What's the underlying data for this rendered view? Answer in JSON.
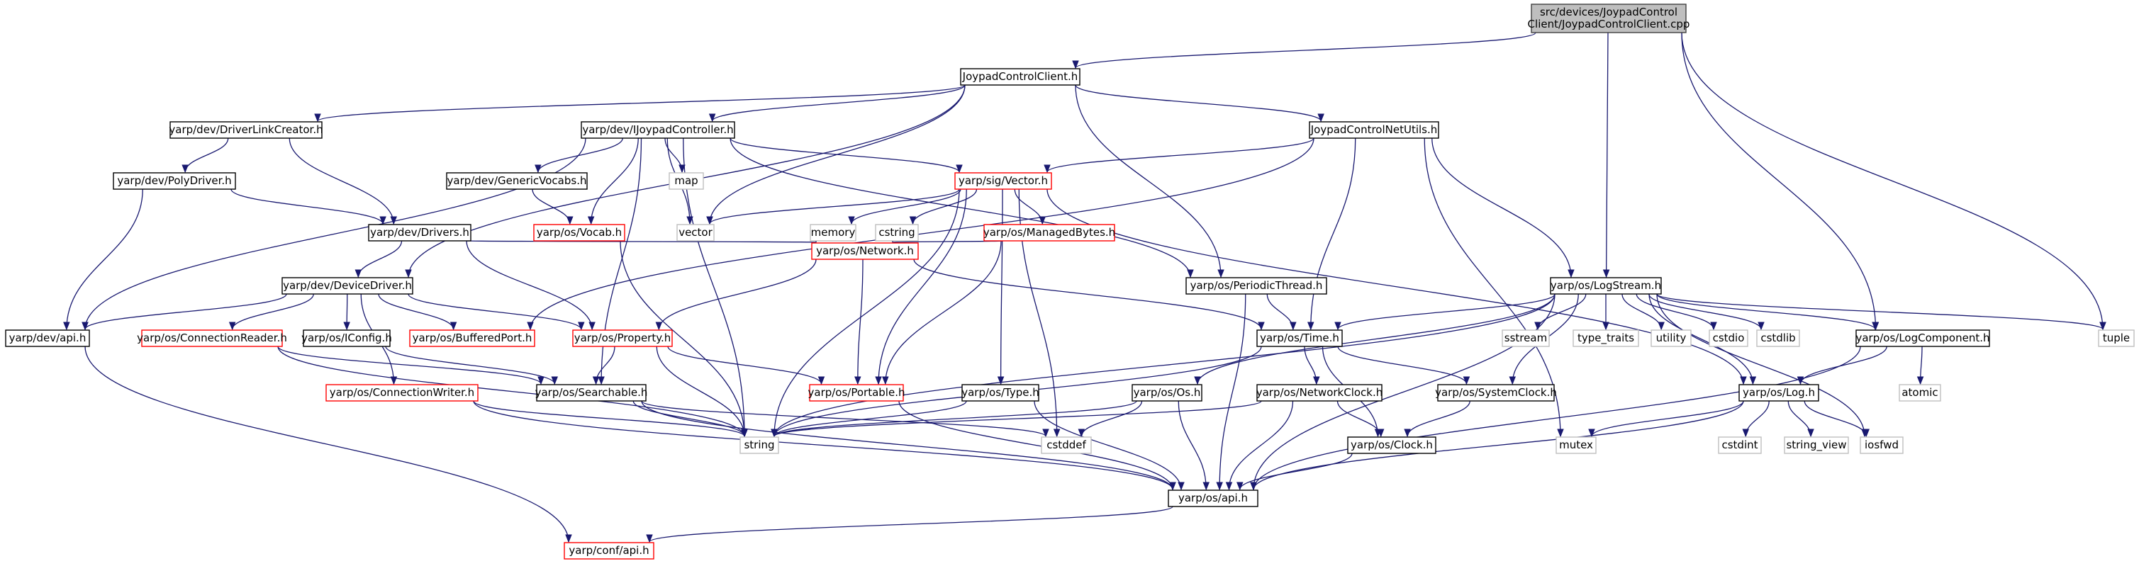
{
  "colors": {
    "background": "#ffffff",
    "edge": "#191970",
    "root_fill": "#bfbfbf",
    "node_fill": "#ffffff",
    "documented_border": "#000000",
    "undocumented_border": "#ff0000",
    "system_border": "#bfbfbf",
    "system_text": "#404040"
  },
  "nodes": [
    {
      "id": "root",
      "lines": [
        "src/devices/JoypadControl",
        "Client/JoypadControlClient.cpp"
      ],
      "kind": "root"
    },
    {
      "id": "joypadcontrolclient_h",
      "lines": [
        "JoypadControlClient.h"
      ],
      "kind": "documented"
    },
    {
      "id": "driverlinkcreator_h",
      "lines": [
        "yarp/dev/DriverLinkCreator.h"
      ],
      "kind": "documented"
    },
    {
      "id": "ijoypadcontroller_h",
      "lines": [
        "yarp/dev/IJoypadController.h"
      ],
      "kind": "documented"
    },
    {
      "id": "joypadcontrolnetutils_h",
      "lines": [
        "JoypadControlNetUtils.h"
      ],
      "kind": "documented"
    },
    {
      "id": "polydriver_h",
      "lines": [
        "yarp/dev/PolyDriver.h"
      ],
      "kind": "documented"
    },
    {
      "id": "genericvocabs_h",
      "lines": [
        "yarp/dev/GenericVocabs.h"
      ],
      "kind": "documented"
    },
    {
      "id": "map",
      "lines": [
        "map"
      ],
      "kind": "system"
    },
    {
      "id": "vector_h",
      "lines": [
        "yarp/sig/Vector.h"
      ],
      "kind": "undocumented"
    },
    {
      "id": "vocab_h",
      "lines": [
        "yarp/os/Vocab.h"
      ],
      "kind": "undocumented"
    },
    {
      "id": "vector",
      "lines": [
        "vector"
      ],
      "kind": "system"
    },
    {
      "id": "memory",
      "lines": [
        "memory"
      ],
      "kind": "system"
    },
    {
      "id": "cstring",
      "lines": [
        "cstring"
      ],
      "kind": "system"
    },
    {
      "id": "managedbytes_h",
      "lines": [
        "yarp/os/ManagedBytes.h"
      ],
      "kind": "undocumented"
    },
    {
      "id": "drivers_h",
      "lines": [
        "yarp/dev/Drivers.h"
      ],
      "kind": "documented"
    },
    {
      "id": "network_h",
      "lines": [
        "yarp/os/Network.h"
      ],
      "kind": "undocumented"
    },
    {
      "id": "periodicthread_h",
      "lines": [
        "yarp/os/PeriodicThread.h"
      ],
      "kind": "documented"
    },
    {
      "id": "logstream_h",
      "lines": [
        "yarp/os/LogStream.h"
      ],
      "kind": "documented"
    },
    {
      "id": "devicedriver_h",
      "lines": [
        "yarp/dev/DeviceDriver.h"
      ],
      "kind": "documented"
    },
    {
      "id": "dev_api_h",
      "lines": [
        "yarp/dev/api.h"
      ],
      "kind": "documented"
    },
    {
      "id": "connectionreader_h",
      "lines": [
        "yarp/os/ConnectionReader.h"
      ],
      "kind": "undocumented"
    },
    {
      "id": "iconfig_h",
      "lines": [
        "yarp/os/IConfig.h"
      ],
      "kind": "documented"
    },
    {
      "id": "bufferedport_h",
      "lines": [
        "yarp/os/BufferedPort.h"
      ],
      "kind": "undocumented"
    },
    {
      "id": "property_h",
      "lines": [
        "yarp/os/Property.h"
      ],
      "kind": "undocumented"
    },
    {
      "id": "time_h",
      "lines": [
        "yarp/os/Time.h"
      ],
      "kind": "documented"
    },
    {
      "id": "sstream",
      "lines": [
        "sstream"
      ],
      "kind": "system"
    },
    {
      "id": "type_traits",
      "lines": [
        "type_traits"
      ],
      "kind": "system"
    },
    {
      "id": "utility",
      "lines": [
        "utility"
      ],
      "kind": "system"
    },
    {
      "id": "cstdio",
      "lines": [
        "cstdio"
      ],
      "kind": "system"
    },
    {
      "id": "cstdlib",
      "lines": [
        "cstdlib"
      ],
      "kind": "system"
    },
    {
      "id": "logcomponent_h",
      "lines": [
        "yarp/os/LogComponent.h"
      ],
      "kind": "documented"
    },
    {
      "id": "tuple",
      "lines": [
        "tuple"
      ],
      "kind": "system"
    },
    {
      "id": "connectionwriter_h",
      "lines": [
        "yarp/os/ConnectionWriter.h"
      ],
      "kind": "undocumented"
    },
    {
      "id": "searchable_h",
      "lines": [
        "yarp/os/Searchable.h"
      ],
      "kind": "documented"
    },
    {
      "id": "portable_h",
      "lines": [
        "yarp/os/Portable.h"
      ],
      "kind": "undocumented"
    },
    {
      "id": "type_h",
      "lines": [
        "yarp/os/Type.h"
      ],
      "kind": "documented"
    },
    {
      "id": "os_h",
      "lines": [
        "yarp/os/Os.h"
      ],
      "kind": "documented"
    },
    {
      "id": "networkclock_h",
      "lines": [
        "yarp/os/NetworkClock.h"
      ],
      "kind": "documented"
    },
    {
      "id": "systemclock_h",
      "lines": [
        "yarp/os/SystemClock.h"
      ],
      "kind": "documented"
    },
    {
      "id": "log_h",
      "lines": [
        "yarp/os/Log.h"
      ],
      "kind": "documented"
    },
    {
      "id": "atomic",
      "lines": [
        "atomic"
      ],
      "kind": "system"
    },
    {
      "id": "string",
      "lines": [
        "string"
      ],
      "kind": "system"
    },
    {
      "id": "cstddef",
      "lines": [
        "cstddef"
      ],
      "kind": "system"
    },
    {
      "id": "clock_h",
      "lines": [
        "yarp/os/Clock.h"
      ],
      "kind": "documented"
    },
    {
      "id": "mutex",
      "lines": [
        "mutex"
      ],
      "kind": "system"
    },
    {
      "id": "cstdint",
      "lines": [
        "cstdint"
      ],
      "kind": "system"
    },
    {
      "id": "string_view",
      "lines": [
        "string_view"
      ],
      "kind": "system"
    },
    {
      "id": "iosfwd",
      "lines": [
        "iosfwd"
      ],
      "kind": "system"
    },
    {
      "id": "os_api_h",
      "lines": [
        "yarp/os/api.h"
      ],
      "kind": "documented"
    },
    {
      "id": "conf_api_h",
      "lines": [
        "yarp/conf/api.h"
      ],
      "kind": "undocumented"
    }
  ],
  "edges": [
    [
      "root",
      "joypadcontrolclient_h"
    ],
    [
      "root",
      "logstream_h"
    ],
    [
      "root",
      "logcomponent_h"
    ],
    [
      "root",
      "tuple"
    ],
    [
      "joypadcontrolclient_h",
      "driverlinkcreator_h"
    ],
    [
      "joypadcontrolclient_h",
      "ijoypadcontroller_h"
    ],
    [
      "joypadcontrolclient_h",
      "joypadcontrolnetutils_h"
    ],
    [
      "joypadcontrolclient_h",
      "devicedriver_h"
    ],
    [
      "joypadcontrolclient_h",
      "vector"
    ],
    [
      "joypadcontrolclient_h",
      "periodicthread_h"
    ],
    [
      "driverlinkcreator_h",
      "polydriver_h"
    ],
    [
      "driverlinkcreator_h",
      "drivers_h"
    ],
    [
      "ijoypadcontroller_h",
      "genericvocabs_h"
    ],
    [
      "ijoypadcontroller_h",
      "map"
    ],
    [
      "ijoypadcontroller_h",
      "vector_h"
    ],
    [
      "ijoypadcontroller_h",
      "vocab_h"
    ],
    [
      "ijoypadcontroller_h",
      "vector"
    ],
    [
      "ijoypadcontroller_h",
      "dev_api_h"
    ],
    [
      "ijoypadcontroller_h",
      "searchable_h"
    ],
    [
      "ijoypadcontroller_h",
      "string"
    ],
    [
      "ijoypadcontroller_h",
      "periodicthread_h"
    ],
    [
      "joypadcontrolnetutils_h",
      "vector_h"
    ],
    [
      "joypadcontrolnetutils_h",
      "bufferedport_h"
    ],
    [
      "joypadcontrolnetutils_h",
      "time_h"
    ],
    [
      "joypadcontrolnetutils_h",
      "logstream_h"
    ],
    [
      "joypadcontrolnetutils_h",
      "mutex"
    ],
    [
      "polydriver_h",
      "drivers_h"
    ],
    [
      "polydriver_h",
      "dev_api_h"
    ],
    [
      "genericvocabs_h",
      "vocab_h"
    ],
    [
      "vector_h",
      "vector"
    ],
    [
      "vector_h",
      "memory"
    ],
    [
      "vector_h",
      "cstring"
    ],
    [
      "vector_h",
      "managedbytes_h"
    ],
    [
      "vector_h",
      "portable_h"
    ],
    [
      "vector_h",
      "type_h"
    ],
    [
      "vector_h",
      "string"
    ],
    [
      "vector_h",
      "cstddef"
    ],
    [
      "vector_h",
      "log_h"
    ],
    [
      "vocab_h",
      "string"
    ],
    [
      "managedbytes_h",
      "network_h"
    ],
    [
      "managedbytes_h",
      "portable_h"
    ],
    [
      "drivers_h",
      "devicedriver_h"
    ],
    [
      "drivers_h",
      "network_h"
    ],
    [
      "drivers_h",
      "property_h"
    ],
    [
      "network_h",
      "property_h"
    ],
    [
      "network_h",
      "portable_h"
    ],
    [
      "network_h",
      "time_h"
    ],
    [
      "periodicthread_h",
      "time_h"
    ],
    [
      "periodicthread_h",
      "os_api_h"
    ],
    [
      "logstream_h",
      "time_h"
    ],
    [
      "logstream_h",
      "sstream"
    ],
    [
      "logstream_h",
      "type_traits"
    ],
    [
      "logstream_h",
      "utility"
    ],
    [
      "logstream_h",
      "cstdio"
    ],
    [
      "logstream_h",
      "cstdlib"
    ],
    [
      "logstream_h",
      "logcomponent_h"
    ],
    [
      "logstream_h",
      "tuple"
    ],
    [
      "logstream_h",
      "os_h"
    ],
    [
      "logstream_h",
      "systemclock_h"
    ],
    [
      "logstream_h",
      "log_h"
    ],
    [
      "logstream_h",
      "string"
    ],
    [
      "logstream_h",
      "os_api_h"
    ],
    [
      "logstream_h",
      "iosfwd"
    ],
    [
      "devicedriver_h",
      "dev_api_h"
    ],
    [
      "devicedriver_h",
      "connectionreader_h"
    ],
    [
      "devicedriver_h",
      "iconfig_h"
    ],
    [
      "devicedriver_h",
      "bufferedport_h"
    ],
    [
      "devicedriver_h",
      "property_h"
    ],
    [
      "devicedriver_h",
      "connectionwriter_h"
    ],
    [
      "dev_api_h",
      "conf_api_h"
    ],
    [
      "connectionreader_h",
      "searchable_h"
    ],
    [
      "connectionreader_h",
      "string"
    ],
    [
      "iconfig_h",
      "searchable_h"
    ],
    [
      "property_h",
      "searchable_h"
    ],
    [
      "property_h",
      "portable_h"
    ],
    [
      "property_h",
      "string"
    ],
    [
      "time_h",
      "networkclock_h"
    ],
    [
      "time_h",
      "systemclock_h"
    ],
    [
      "time_h",
      "clock_h"
    ],
    [
      "time_h",
      "string"
    ],
    [
      "logcomponent_h",
      "atomic"
    ],
    [
      "logcomponent_h",
      "log_h"
    ],
    [
      "logcomponent_h",
      "os_api_h"
    ],
    [
      "connectionwriter_h",
      "string"
    ],
    [
      "connectionwriter_h",
      "os_api_h"
    ],
    [
      "searchable_h",
      "string"
    ],
    [
      "searchable_h",
      "cstddef"
    ],
    [
      "searchable_h",
      "os_api_h"
    ],
    [
      "portable_h",
      "os_api_h"
    ],
    [
      "type_h",
      "string"
    ],
    [
      "type_h",
      "os_api_h"
    ],
    [
      "os_h",
      "string"
    ],
    [
      "os_h",
      "cstddef"
    ],
    [
      "os_h",
      "os_api_h"
    ],
    [
      "networkclock_h",
      "string"
    ],
    [
      "networkclock_h",
      "clock_h"
    ],
    [
      "networkclock_h",
      "os_api_h"
    ],
    [
      "systemclock_h",
      "clock_h"
    ],
    [
      "clock_h",
      "os_api_h"
    ],
    [
      "log_h",
      "cstdint"
    ],
    [
      "log_h",
      "string_view"
    ],
    [
      "log_h",
      "iosfwd"
    ],
    [
      "log_h",
      "mutex"
    ],
    [
      "log_h",
      "os_api_h"
    ],
    [
      "os_api_h",
      "conf_api_h"
    ]
  ]
}
